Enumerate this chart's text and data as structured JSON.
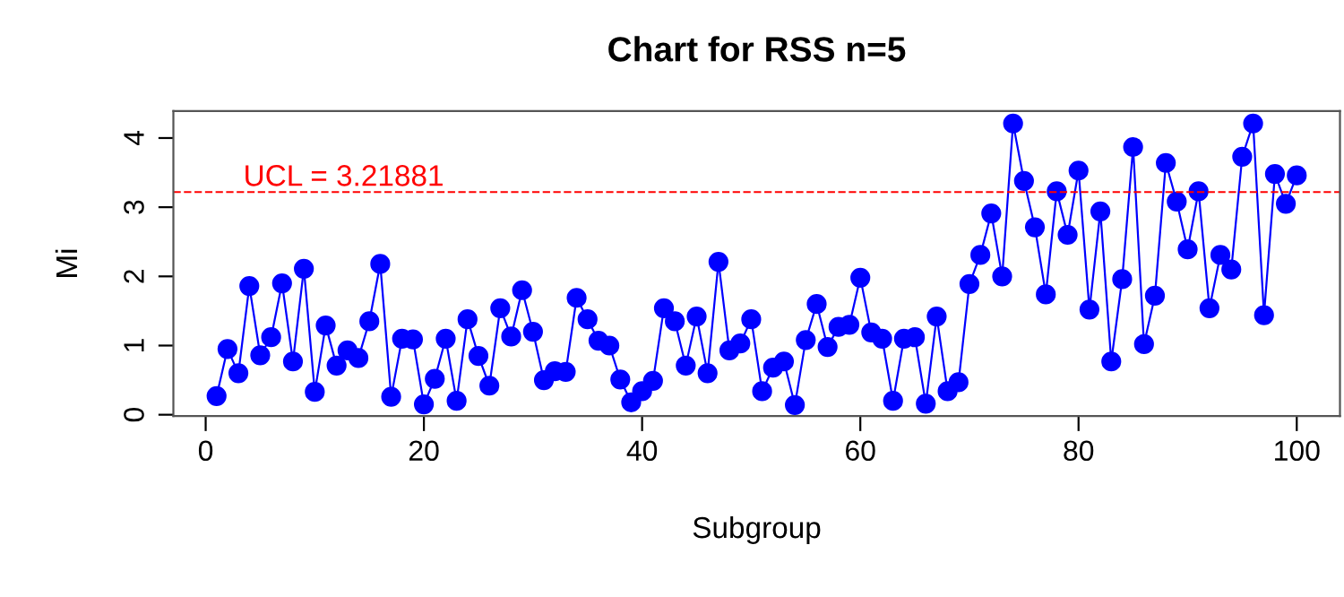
{
  "chart_data": {
    "type": "line",
    "title": "Chart for RSS n=5",
    "xlabel": "Subgroup",
    "ylabel": "Mi",
    "x": [
      1,
      2,
      3,
      4,
      5,
      6,
      7,
      8,
      9,
      10,
      11,
      12,
      13,
      14,
      15,
      16,
      17,
      18,
      19,
      20,
      21,
      22,
      23,
      24,
      25,
      26,
      27,
      28,
      29,
      30,
      31,
      32,
      33,
      34,
      35,
      36,
      37,
      38,
      39,
      40,
      41,
      42,
      43,
      44,
      45,
      46,
      47,
      48,
      49,
      50,
      51,
      52,
      53,
      54,
      55,
      56,
      57,
      58,
      59,
      60,
      61,
      62,
      63,
      64,
      65,
      66,
      67,
      68,
      69,
      70,
      71,
      72,
      73,
      74,
      75,
      76,
      77,
      78,
      79,
      80,
      81,
      82,
      83,
      84,
      85,
      86,
      87,
      88,
      89,
      90,
      91,
      92,
      93,
      94,
      95,
      96,
      97,
      98,
      99,
      100
    ],
    "series": [
      {
        "color": "#0000ff",
        "values": [
          0.27,
          0.95,
          0.6,
          1.86,
          0.86,
          1.12,
          1.9,
          0.77,
          2.11,
          0.33,
          1.29,
          0.71,
          0.93,
          0.82,
          1.35,
          2.18,
          0.26,
          1.1,
          1.09,
          0.15,
          0.52,
          1.1,
          0.2,
          1.38,
          0.85,
          0.42,
          1.54,
          1.13,
          1.8,
          1.2,
          0.5,
          0.63,
          0.62,
          1.69,
          1.38,
          1.07,
          1.0,
          0.51,
          0.18,
          0.34,
          0.49,
          1.54,
          1.35,
          0.71,
          1.42,
          0.6,
          2.21,
          0.93,
          1.03,
          1.38,
          0.34,
          0.68,
          0.77,
          0.14,
          1.08,
          1.6,
          0.98,
          1.27,
          1.3,
          1.98,
          1.19,
          1.1,
          0.2,
          1.1,
          1.12,
          0.16,
          1.42,
          0.34,
          0.47,
          1.89,
          2.31,
          2.91,
          2.0,
          4.21,
          3.38,
          2.71,
          1.74,
          3.23,
          2.6,
          3.53,
          1.52,
          2.94,
          0.77,
          1.96,
          3.87,
          1.02,
          1.72,
          3.64,
          3.08,
          2.39,
          3.23,
          1.54,
          2.31,
          2.1,
          3.73,
          4.21,
          1.44,
          3.48,
          3.05,
          3.46
        ]
      }
    ],
    "xlim": [
      -2.96,
      103.96
    ],
    "ylim": [
      -0.02,
      4.39
    ],
    "xticks": [
      0,
      20,
      40,
      60,
      80,
      100
    ],
    "yticks": [
      0,
      1,
      2,
      3,
      4
    ],
    "ref_lines": [
      {
        "axis": "y",
        "value": 3.21881,
        "label": "UCL = 3.21881",
        "color": "#ff0000",
        "line_style": "dashed"
      }
    ],
    "marker": "circle",
    "line_style": "solid",
    "grid": false
  }
}
